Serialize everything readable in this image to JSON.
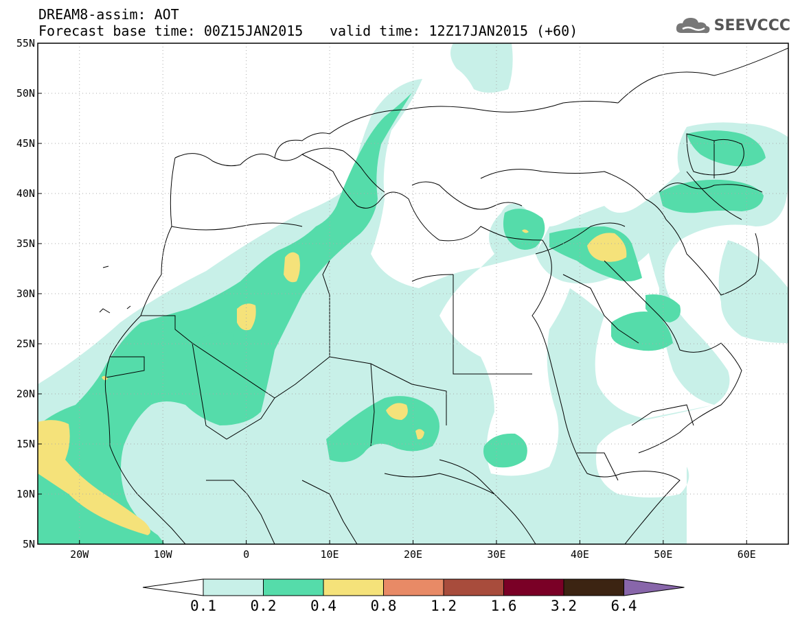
{
  "header": {
    "line1": "DREAM8-assim: AOT",
    "line2_left": "Forecast base time: 00Z15JAN2015",
    "line2_right": "valid time: 12Z17JAN2015 (+60)",
    "logo_text": "SEEVCCC",
    "logo_icon": "cloud-icon"
  },
  "map": {
    "lon_range": [
      -25,
      65
    ],
    "lat_range": [
      5,
      55
    ],
    "lon_ticks": [
      {
        "value": -20,
        "label": "20W"
      },
      {
        "value": -10,
        "label": "10W"
      },
      {
        "value": 0,
        "label": "0"
      },
      {
        "value": 10,
        "label": "10E"
      },
      {
        "value": 20,
        "label": "20E"
      },
      {
        "value": 30,
        "label": "30E"
      },
      {
        "value": 40,
        "label": "40E"
      },
      {
        "value": 50,
        "label": "50E"
      },
      {
        "value": 60,
        "label": "60E"
      }
    ],
    "lat_ticks": [
      {
        "value": 55,
        "label": "55N"
      },
      {
        "value": 50,
        "label": "50N"
      },
      {
        "value": 45,
        "label": "45N"
      },
      {
        "value": 40,
        "label": "40N"
      },
      {
        "value": 35,
        "label": "35N"
      },
      {
        "value": 30,
        "label": "30N"
      },
      {
        "value": 25,
        "label": "25N"
      },
      {
        "value": 20,
        "label": "20N"
      },
      {
        "value": 15,
        "label": "15N"
      },
      {
        "value": 10,
        "label": "10N"
      },
      {
        "value": 5,
        "label": "5N"
      }
    ],
    "grid": true,
    "grid_style": "dotted"
  },
  "legend": {
    "levels": [
      "0.1",
      "0.2",
      "0.4",
      "0.8",
      "1.2",
      "1.6",
      "3.2",
      "6.4"
    ],
    "colors": [
      "#ffffff",
      "#c8f0e8",
      "#55dcaa",
      "#f5e27a",
      "#e88a66",
      "#a84c3c",
      "#7a0026",
      "#3c2412",
      "#8866aa"
    ]
  }
}
